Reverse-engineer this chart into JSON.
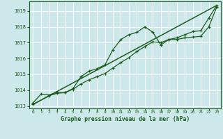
{
  "title": "Graphe pression niveau de la mer (hPa)",
  "background_color": "#cce8ea",
  "plot_bg_color": "#cce8ea",
  "grid_color": "#ffffff",
  "line_color": "#1a5c1a",
  "xlim": [
    -0.5,
    23.5
  ],
  "ylim": [
    1012.85,
    1019.6
  ],
  "yticks": [
    1013,
    1014,
    1015,
    1016,
    1017,
    1018,
    1019
  ],
  "xticks": [
    0,
    1,
    2,
    3,
    4,
    5,
    6,
    7,
    8,
    9,
    10,
    11,
    12,
    13,
    14,
    15,
    16,
    17,
    18,
    19,
    20,
    21,
    22,
    23
  ],
  "series1_x": [
    0,
    1,
    2,
    3,
    4,
    5,
    6,
    7,
    8,
    9,
    10,
    11,
    12,
    13,
    14,
    15,
    16,
    17,
    18,
    19,
    20,
    21,
    22,
    23
  ],
  "series1_y": [
    1013.2,
    1013.75,
    1013.7,
    1013.85,
    1013.85,
    1014.1,
    1014.85,
    1015.2,
    1015.35,
    1015.6,
    1016.55,
    1017.2,
    1017.5,
    1017.65,
    1018.0,
    1017.65,
    1016.85,
    1017.2,
    1017.2,
    1017.3,
    1017.35,
    1017.4,
    1018.0,
    1019.25
  ],
  "series2_x": [
    0,
    2,
    3,
    4,
    5,
    6,
    7,
    8,
    9,
    10,
    11,
    12,
    13,
    14,
    15,
    16,
    17,
    18,
    19,
    20,
    21,
    22,
    23
  ],
  "series2_y": [
    1013.1,
    1013.65,
    1013.8,
    1013.85,
    1014.05,
    1014.4,
    1014.65,
    1014.85,
    1015.05,
    1015.4,
    1015.75,
    1016.05,
    1016.45,
    1016.75,
    1017.05,
    1017.0,
    1017.2,
    1017.3,
    1017.5,
    1017.7,
    1017.75,
    1018.55,
    1019.35
  ],
  "series3_x": [
    0,
    23
  ],
  "series3_y": [
    1013.1,
    1019.35
  ]
}
